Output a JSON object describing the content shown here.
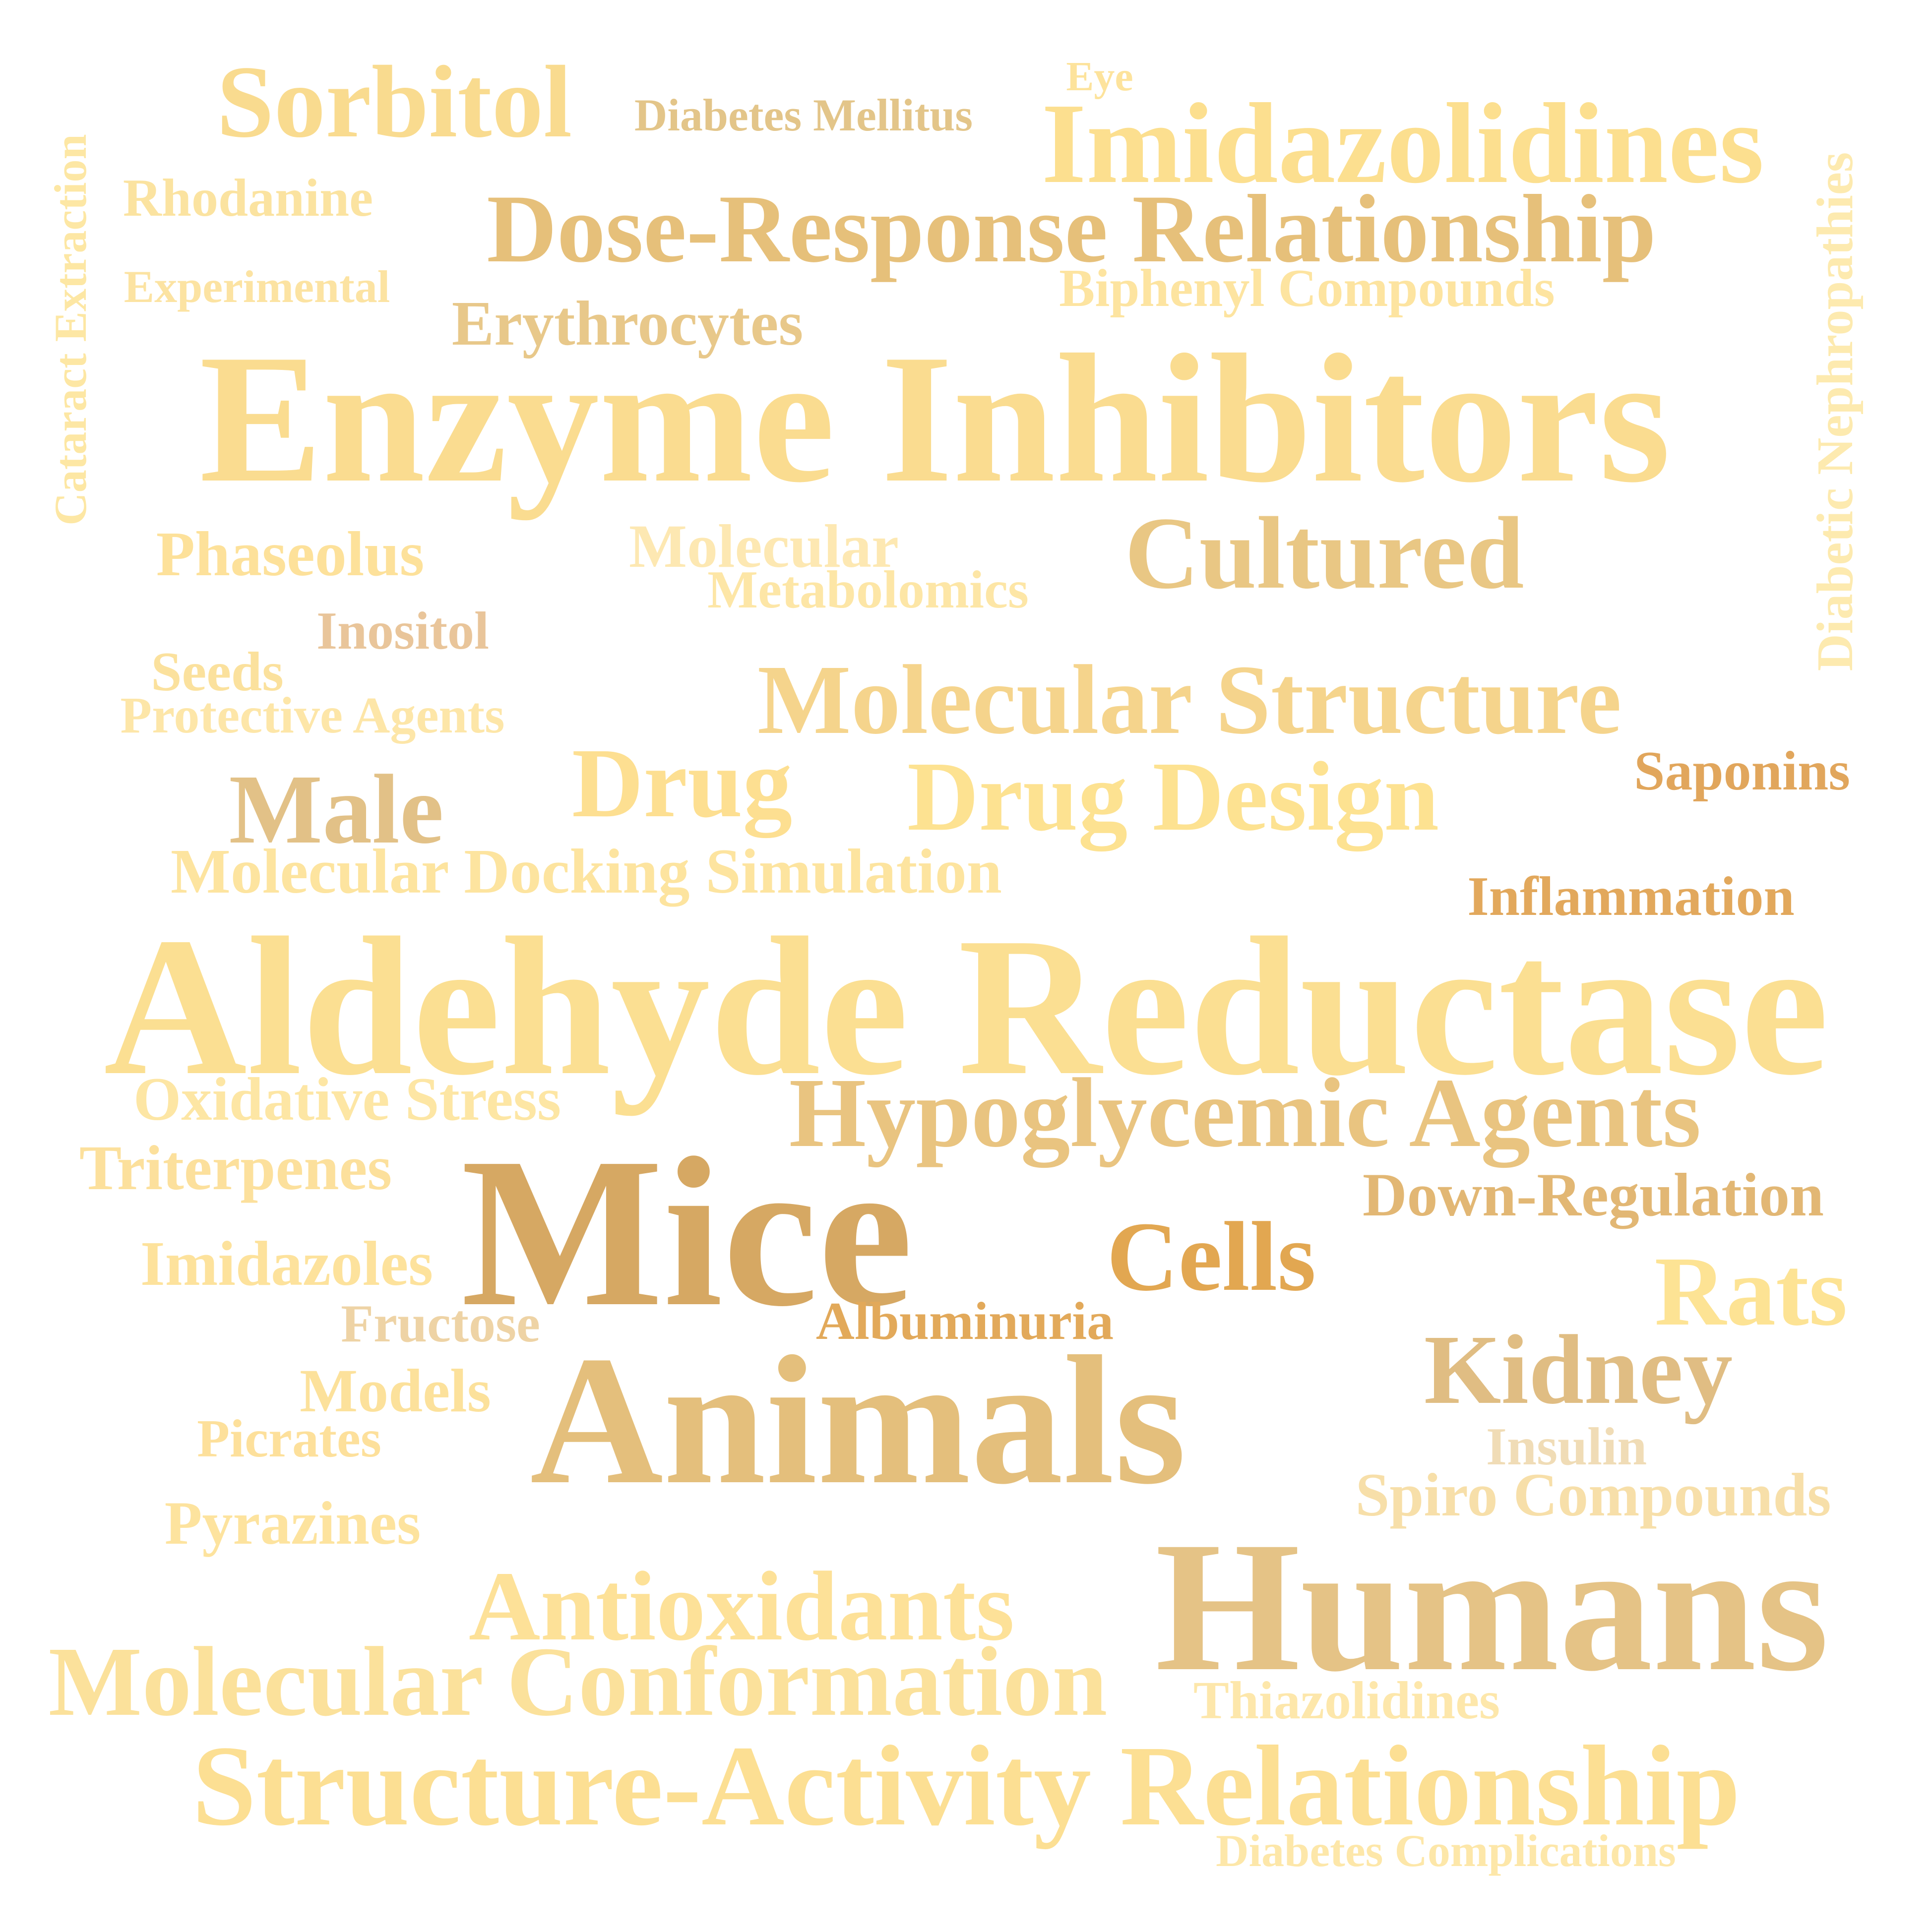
{
  "words": [
    {
      "text": "Sorbitol",
      "color": "#f9db8f"
    },
    {
      "text": "Diabetes Mellitus",
      "color": "#e3c589"
    },
    {
      "text": "Eye",
      "color": "#fde39c"
    },
    {
      "text": "Imidazolidines",
      "color": "#fcdf8f"
    },
    {
      "text": "Cataract Extraction",
      "color": "#fde7a4"
    },
    {
      "text": "Rhodanine",
      "color": "#fbe3a0"
    },
    {
      "text": "Dose-Response Relationship",
      "color": "#e6c07a"
    },
    {
      "text": "Diabetic Nephropathies",
      "color": "#fdeaaf"
    },
    {
      "text": "Experimental",
      "color": "#fce3a2"
    },
    {
      "text": "Biphenyl Compounds",
      "color": "#fde4a0"
    },
    {
      "text": "Erythrocytes",
      "color": "#e8c88a"
    },
    {
      "text": "Enzyme Inhibitors",
      "color": "#fadc90"
    },
    {
      "text": "Phaseolus",
      "color": "#fde19a"
    },
    {
      "text": "Molecular",
      "color": "#fde8b2"
    },
    {
      "text": "Metabolomics",
      "color": "#fde6a6"
    },
    {
      "text": "Cultured",
      "color": "#e9c784"
    },
    {
      "text": "Inositol",
      "color": "#e9c59a"
    },
    {
      "text": "Seeds",
      "color": "#fbe19d"
    },
    {
      "text": "Protective Agents",
      "color": "#fde6a8"
    },
    {
      "text": "Molecular Structure",
      "color": "#f5d48c"
    },
    {
      "text": "Saponins",
      "color": "#e1a65c"
    },
    {
      "text": "Male",
      "color": "#e2c187"
    },
    {
      "text": "Drug",
      "color": "#fddf91"
    },
    {
      "text": "Drug Design",
      "color": "#fde291"
    },
    {
      "text": "Molecular Docking Simulation",
      "color": "#fde49f"
    },
    {
      "text": "Inflammation",
      "color": "#e2a85c"
    },
    {
      "text": "Aldehyde Reductase",
      "color": "#fbdf92"
    },
    {
      "text": "Oxidative Stress",
      "color": "#fde6a4"
    },
    {
      "text": "Hypoglycemic Agents",
      "color": "#e9c480"
    },
    {
      "text": "Triterpenes",
      "color": "#fce09c"
    },
    {
      "text": "Mice",
      "color": "#d6a863"
    },
    {
      "text": "Down-Regulation",
      "color": "#e2b774"
    },
    {
      "text": "Cells",
      "color": "#e2a751"
    },
    {
      "text": "Imidazoles",
      "color": "#fde29c"
    },
    {
      "text": "Rats",
      "color": "#fde394"
    },
    {
      "text": "Fructose",
      "color": "#eed3a5"
    },
    {
      "text": "Albuminuria",
      "color": "#e2a95a"
    },
    {
      "text": "Kidney",
      "color": "#e0bd83"
    },
    {
      "text": "Models",
      "color": "#fce19b"
    },
    {
      "text": "Animals",
      "color": "#e4bf7c"
    },
    {
      "text": "Picrates",
      "color": "#fde09b"
    },
    {
      "text": "Insulin",
      "color": "#f0dcb6"
    },
    {
      "text": "Spiro Compounds",
      "color": "#f7dfa9"
    },
    {
      "text": "Pyrazines",
      "color": "#fde39e"
    },
    {
      "text": "Humans",
      "color": "#e5c386"
    },
    {
      "text": "Antioxidants",
      "color": "#fde198"
    },
    {
      "text": "Molecular Conformation",
      "color": "#fbe19b"
    },
    {
      "text": "Thiazolidines",
      "color": "#fde7ab"
    },
    {
      "text": "Structure-Activity Relationship",
      "color": "#fcdf93"
    },
    {
      "text": "Diabetes Complications",
      "color": "#fde7a9"
    }
  ]
}
